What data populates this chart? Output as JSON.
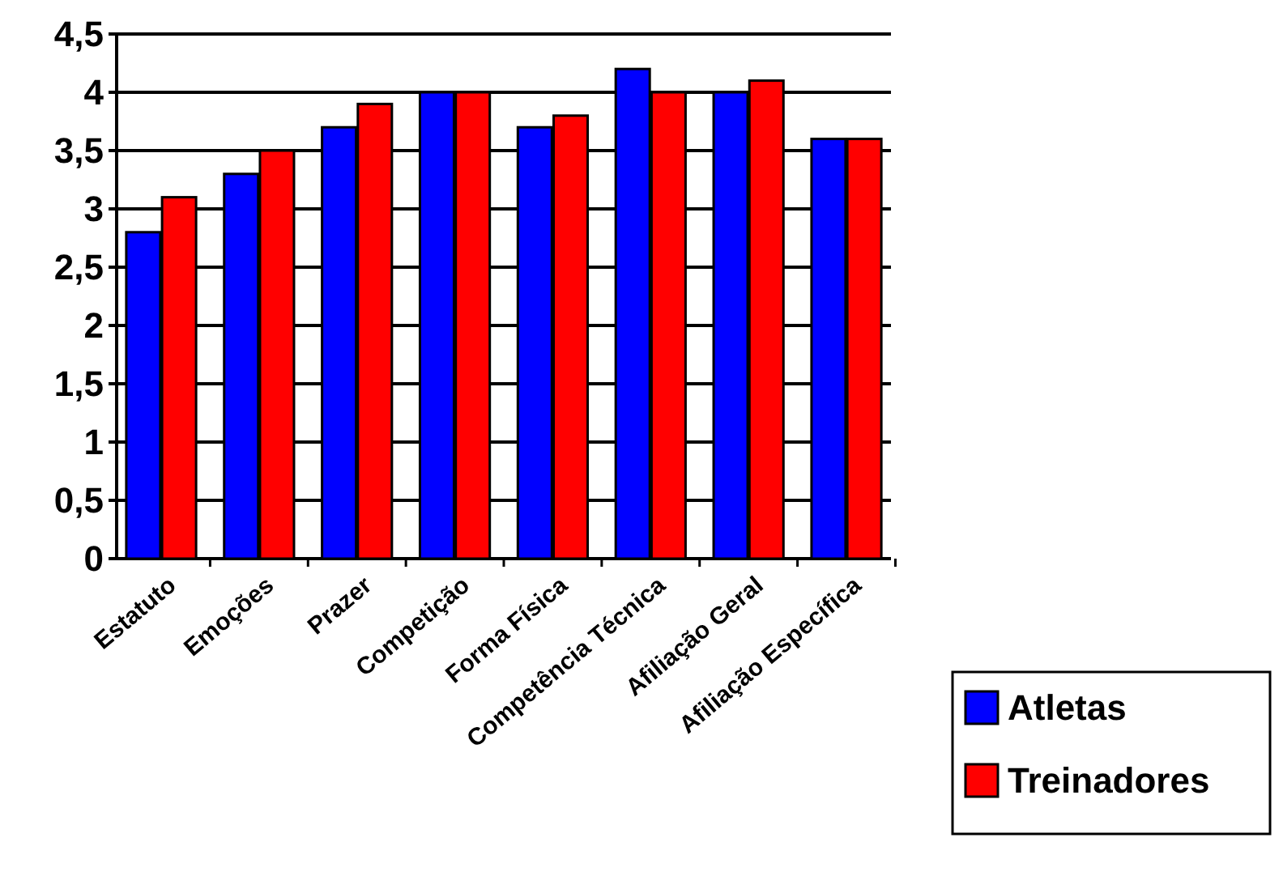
{
  "chart_data": {
    "type": "bar",
    "categories": [
      "Estatuto",
      "Emoções",
      "Prazer",
      "Competição",
      "Forma Física",
      "Competência Técnica",
      "Afiliação Geral",
      "Afiliação Específica"
    ],
    "series": [
      {
        "name": "Atletas",
        "color": "#0000ff",
        "values": [
          2.8,
          3.3,
          3.7,
          4.0,
          3.7,
          4.2,
          4.0,
          3.6
        ]
      },
      {
        "name": "Treinadores",
        "color": "#ff0000",
        "values": [
          3.1,
          3.5,
          3.9,
          4.0,
          3.8,
          4.0,
          4.1,
          3.6
        ]
      }
    ],
    "ylim": [
      0,
      4.5
    ],
    "yticks": [
      {
        "value": 0,
        "label": "0"
      },
      {
        "value": 0.5,
        "label": "0,5"
      },
      {
        "value": 1,
        "label": "1"
      },
      {
        "value": 1.5,
        "label": "1,5"
      },
      {
        "value": 2,
        "label": "2"
      },
      {
        "value": 2.5,
        "label": "2,5"
      },
      {
        "value": 3,
        "label": "3"
      },
      {
        "value": 3.5,
        "label": "3,5"
      },
      {
        "value": 4,
        "label": "4"
      },
      {
        "value": 4.5,
        "label": "4,5"
      }
    ],
    "grid": "y",
    "legend": "bottom right"
  }
}
